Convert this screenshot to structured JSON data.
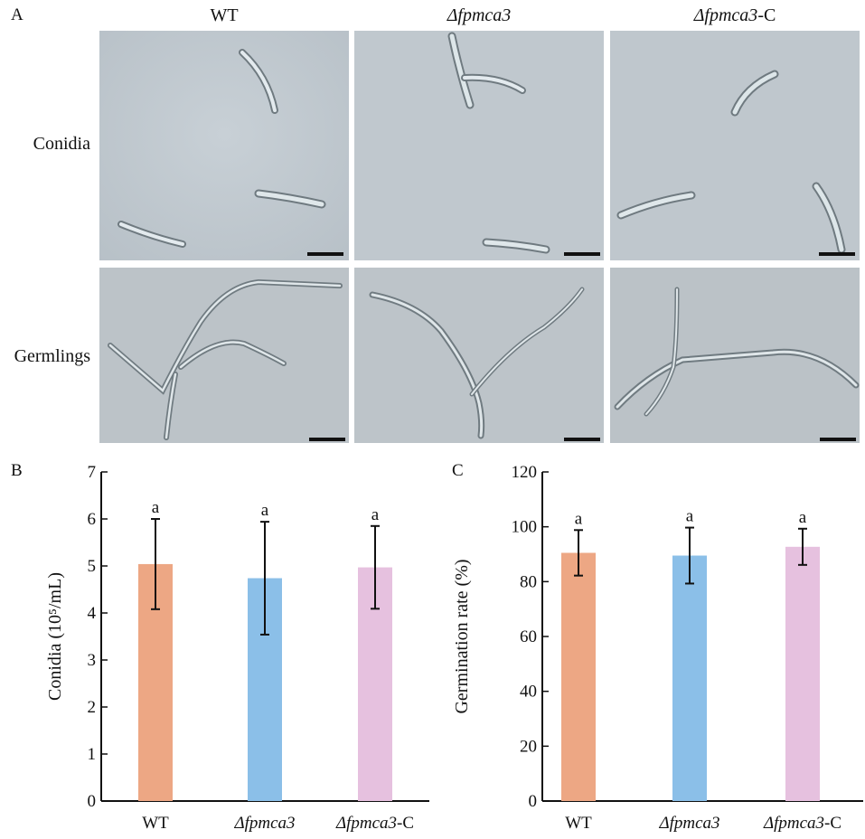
{
  "figure": {
    "panel_labels": {
      "a": "A",
      "b": "B",
      "c": "C"
    },
    "micrograph_panel": {
      "columns": [
        {
          "prefix": "",
          "italic": "",
          "suffix": "WT"
        },
        {
          "prefix": "",
          "italic": "Δfpmca3",
          "suffix": ""
        },
        {
          "prefix": "",
          "italic": "Δfpmca3",
          "suffix": "-C"
        }
      ],
      "rows": [
        "Conidia",
        "Germlings"
      ]
    }
  },
  "chart_data": [
    {
      "type": "bar",
      "panel": "B",
      "categories": [
        "WT",
        "Δfpmca3",
        "Δfpmca3-C"
      ],
      "values": [
        5.04,
        4.74,
        4.97
      ],
      "error": [
        0.96,
        1.2,
        0.88
      ],
      "significance": [
        "a",
        "a",
        "a"
      ],
      "colors": [
        "#EDA784",
        "#8BBFE8",
        "#E6C1DF"
      ],
      "ylabel": "Conidia (10⁵/mL)",
      "ylim": [
        0,
        7
      ],
      "yticks": [
        0,
        1,
        2,
        3,
        4,
        5,
        6,
        7
      ]
    },
    {
      "type": "bar",
      "panel": "C",
      "categories": [
        "WT",
        "Δfpmca3",
        "Δfpmca3-C"
      ],
      "values": [
        90.5,
        89.5,
        92.7
      ],
      "error": [
        8.3,
        10.2,
        6.6
      ],
      "significance": [
        "a",
        "a",
        "a"
      ],
      "colors": [
        "#EDA784",
        "#8BBFE8",
        "#E6C1DF"
      ],
      "ylabel": "Germination rate (%)",
      "ylim": [
        0,
        120
      ],
      "yticks": [
        0,
        20,
        40,
        60,
        80,
        100,
        120
      ]
    }
  ]
}
